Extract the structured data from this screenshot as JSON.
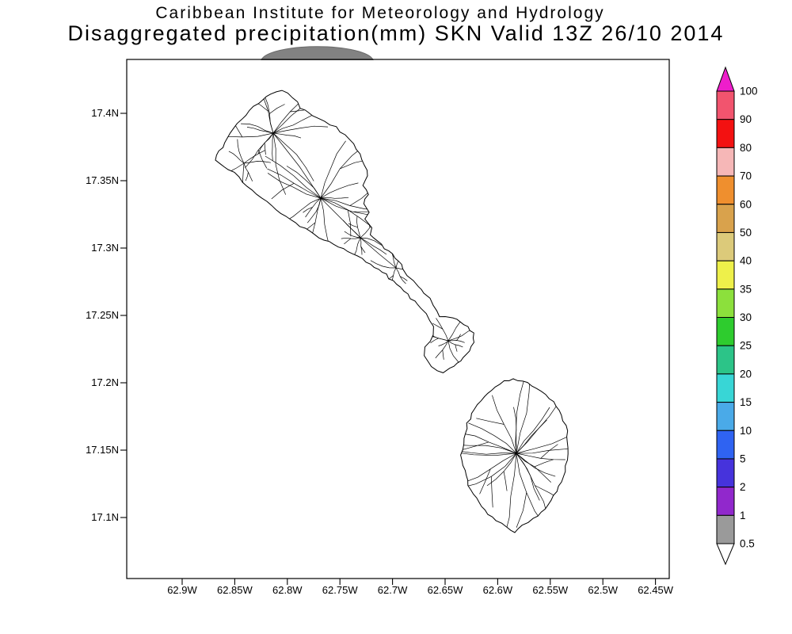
{
  "header": {
    "title_line1": "Caribbean Institute for Meteorology and Hydrology",
    "title_line2": "Disaggregated precipitation(mm) SKN Valid 13Z 26/10 2014"
  },
  "map": {
    "lat_labels": [
      "17.4N",
      "17.35N",
      "17.3N",
      "17.25N",
      "17.2N",
      "17.15N",
      "17.1N"
    ],
    "lon_labels": [
      "62.9W",
      "62.85W",
      "62.8W",
      "62.75W",
      "62.7W",
      "62.65W",
      "62.6W",
      "62.55W",
      "62.5W",
      "62.45W"
    ]
  },
  "colorbar": {
    "levels": [
      "100",
      "90",
      "80",
      "70",
      "60",
      "50",
      "40",
      "35",
      "30",
      "25",
      "20",
      "15",
      "10",
      "5",
      "2",
      "1",
      "0.5"
    ],
    "segment_colors": [
      "#f2546e",
      "#f31111",
      "#f6b7b7",
      "#ef8f2e",
      "#d9a24c",
      "#dcca7a",
      "#eef04a",
      "#8ce03c",
      "#2ecc2e",
      "#2cc488",
      "#38d6d6",
      "#4aaae8",
      "#2f63f2",
      "#4633dc",
      "#9128cc",
      "#9a9a9a"
    ],
    "top_arrow_color": "#ee1ecb",
    "bottom_arrow_color": "#ffffff"
  },
  "decor": {
    "blob_color": "#828282"
  }
}
